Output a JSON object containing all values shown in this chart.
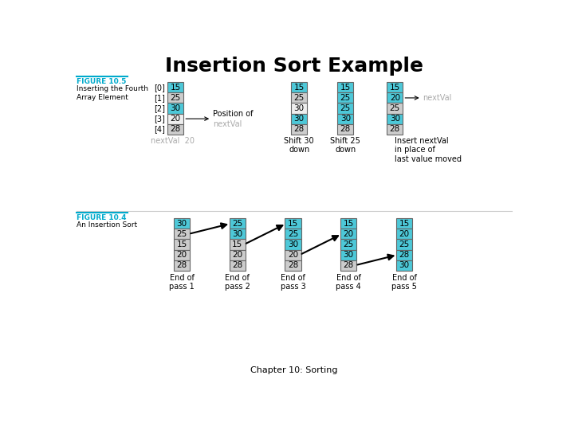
{
  "title": "Insertion Sort Example",
  "subtitle": "Chapter 10: Sorting",
  "fig10_5_label": "FIGURE 10.5",
  "fig10_5_desc": "Inserting the Fourth\nArray Element",
  "fig10_4_label": "FIGURE 10.4",
  "fig10_4_desc": "An Insertion Sort",
  "cyan": "#4DC8D8",
  "light_gray": "#CCCCCC",
  "white_cell": "#EEEEEE",
  "figure_label_color": "#00AACC",
  "gray_text": "#AAAAAA",
  "bg": "#FFFFFF",
  "top_array1": {
    "indices": [
      "[0]",
      "[1]",
      "[2]",
      "[3]",
      "[4]"
    ],
    "values": [
      15,
      25,
      30,
      20,
      28
    ],
    "colors": [
      "cyan",
      "gray",
      "cyan",
      "white",
      "gray"
    ]
  },
  "top_array2": {
    "values": [
      15,
      25,
      30,
      30,
      28
    ],
    "colors": [
      "cyan",
      "gray",
      "white",
      "cyan",
      "gray"
    ]
  },
  "top_array3": {
    "values": [
      15,
      25,
      25,
      30,
      28
    ],
    "colors": [
      "cyan",
      "cyan",
      "cyan",
      "cyan",
      "gray"
    ]
  },
  "top_array4": {
    "values": [
      15,
      20,
      25,
      30,
      28
    ],
    "colors": [
      "cyan",
      "cyan",
      "gray",
      "cyan",
      "gray"
    ]
  },
  "bottom_passes": [
    [
      30,
      25,
      15,
      20,
      28
    ],
    [
      25,
      30,
      15,
      20,
      28
    ],
    [
      15,
      25,
      30,
      20,
      28
    ],
    [
      15,
      20,
      25,
      30,
      28
    ],
    [
      15,
      20,
      25,
      28,
      30
    ]
  ],
  "bottom_colors": [
    [
      "cyan",
      "gray",
      "gray",
      "gray",
      "gray"
    ],
    [
      "cyan",
      "cyan",
      "gray",
      "gray",
      "gray"
    ],
    [
      "cyan",
      "cyan",
      "cyan",
      "gray",
      "gray"
    ],
    [
      "cyan",
      "cyan",
      "cyan",
      "cyan",
      "gray"
    ],
    [
      "cyan",
      "cyan",
      "cyan",
      "cyan",
      "cyan"
    ]
  ],
  "pass_labels": [
    "End of\npass 1",
    "End of\npass 2",
    "End of\npass 3",
    "End of\npass 4",
    "End of\npass 5"
  ]
}
